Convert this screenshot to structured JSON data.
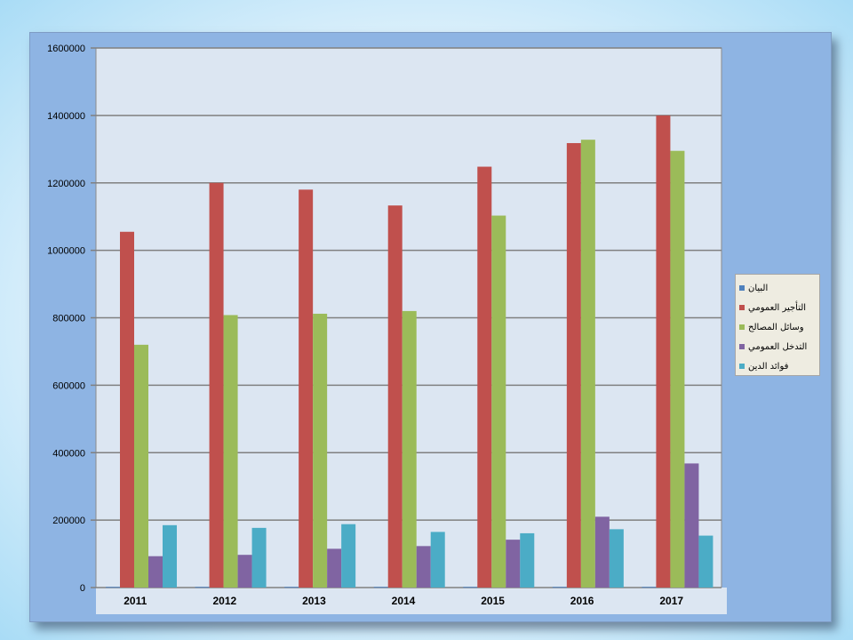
{
  "chart_data": {
    "type": "bar",
    "categories": [
      "2011",
      "2012",
      "2013",
      "2014",
      "2015",
      "2016",
      "2017"
    ],
    "series": [
      {
        "name": "البيان",
        "color": "#4f81bd",
        "values": [
          2011,
          2012,
          2013,
          2014,
          2015,
          2016,
          2017
        ]
      },
      {
        "name": "التأجير العمومي",
        "color": "#c0504d",
        "values": [
          1055000,
          1200000,
          1180000,
          1133000,
          1248000,
          1318000,
          1400000
        ]
      },
      {
        "name": "وسائل المصالح",
        "color": "#9bbb59",
        "values": [
          720000,
          808000,
          812000,
          820000,
          1103000,
          1328000,
          1295000
        ]
      },
      {
        "name": "التدخل العمومي",
        "color": "#8064a2",
        "values": [
          93000,
          97000,
          115000,
          123000,
          142000,
          210000,
          368000
        ]
      },
      {
        "name": "فوائد الدين",
        "color": "#4bacc6",
        "values": [
          185000,
          177000,
          188000,
          165000,
          161000,
          173000,
          154000
        ]
      }
    ],
    "y_ticks": [
      "0",
      "200000",
      "400000",
      "600000",
      "800000",
      "1000000",
      "1200000",
      "1400000",
      "1600000"
    ],
    "ylim": [
      0,
      1600000
    ],
    "grid": true,
    "legend_position": "right",
    "title": "",
    "xlabel": "",
    "ylabel": "",
    "colors": {
      "outer_area": "#8eb4e3",
      "plot_area": "#dce6f2",
      "category_band": "#dce6f2",
      "legend_background": "#eeece1"
    }
  }
}
